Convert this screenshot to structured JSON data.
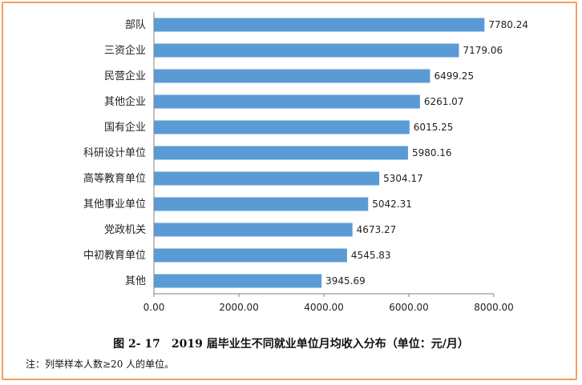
{
  "caption": "图 2- 17　2019 届毕业生不同就业单位月均收入分布（单位：元/月）",
  "note": "注：列举样本人数≥20 人的单位。",
  "colors": {
    "bar": "#5b9bd5",
    "axis": "#808080",
    "frame": "#f0a060"
  },
  "chart_data": {
    "type": "bar",
    "orientation": "horizontal",
    "categories": [
      "部队",
      "三资企业",
      "民营企业",
      "其他企业",
      "国有企业",
      "科研设计单位",
      "高等教育单位",
      "其他事业单位",
      "党政机关",
      "中初教育单位",
      "其他"
    ],
    "values": [
      7780.24,
      7179.06,
      6499.25,
      6261.07,
      6015.25,
      5980.16,
      5304.17,
      5042.31,
      4673.27,
      4545.83,
      3945.69
    ],
    "value_labels": [
      "7780.24",
      "7179.06",
      "6499.25",
      "6261.07",
      "6015.25",
      "5980.16",
      "5304.17",
      "5042.31",
      "4673.27",
      "4545.83",
      "3945.69"
    ],
    "xlim": [
      0,
      8000
    ],
    "x_ticks": [
      "0.00",
      "2000.00",
      "4000.00",
      "6000.00",
      "8000.00"
    ],
    "grid": false
  }
}
